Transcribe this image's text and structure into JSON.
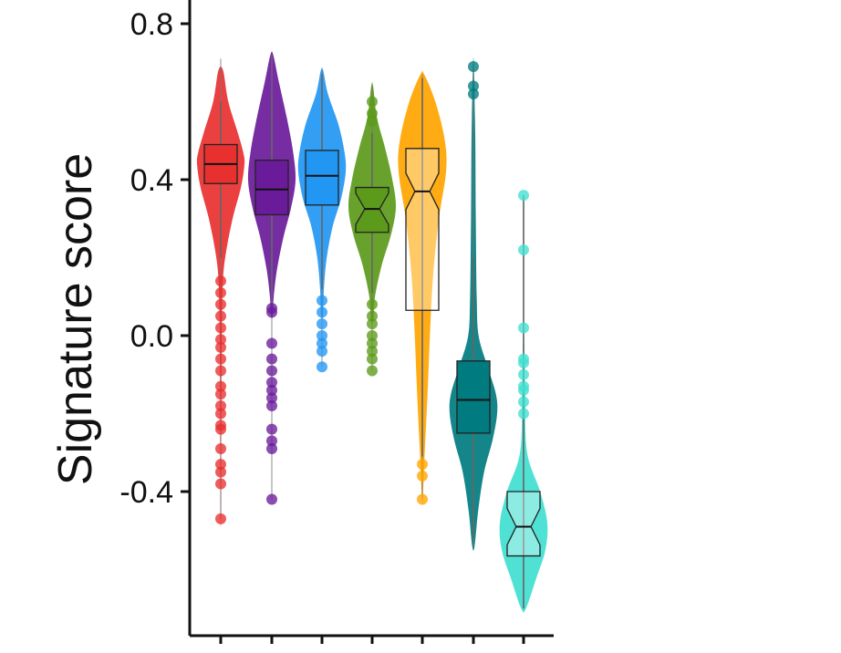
{
  "chart_data": {
    "type": "violin",
    "ylabel": "Signature score",
    "ylim": [
      -0.72,
      0.86
    ],
    "yticks": [
      0.8,
      0.4,
      0.0,
      -0.4
    ],
    "ytick_labels": [
      "0.8",
      "0.4",
      "0.0",
      "-0.4"
    ],
    "xtick_labels": [
      "",
      "",
      "",
      "",
      "",
      "",
      ""
    ],
    "grid": false,
    "legend": "none",
    "series": [
      {
        "color": "#e8302f",
        "q1": 0.39,
        "median": 0.44,
        "q3": 0.49,
        "whisker_low": 0.2,
        "whisker_high": 0.6,
        "min": -0.47,
        "max": 0.71,
        "notched": false,
        "transparent_box": false,
        "violin": [
          [
            0.68,
            0.1
          ],
          [
            0.6,
            0.32
          ],
          [
            0.52,
            0.72
          ],
          [
            0.47,
            0.95
          ],
          [
            0.44,
            1.0
          ],
          [
            0.38,
            0.85
          ],
          [
            0.3,
            0.5
          ],
          [
            0.22,
            0.24
          ],
          [
            0.15,
            0.1
          ],
          [
            0.05,
            0.05
          ],
          [
            -0.1,
            0.03
          ],
          [
            -0.3,
            0.02
          ],
          [
            -0.47,
            0.01
          ]
        ],
        "outliers": [
          0.14,
          0.11,
          0.08,
          0.05,
          0.02,
          -0.01,
          -0.03,
          -0.06,
          -0.09,
          -0.13,
          -0.15,
          -0.18,
          -0.2,
          -0.23,
          -0.24,
          -0.29,
          -0.33,
          -0.35,
          -0.38,
          -0.47
        ]
      },
      {
        "color": "#6a1b9a",
        "q1": 0.31,
        "median": 0.375,
        "q3": 0.45,
        "whisker_low": 0.12,
        "whisker_high": 0.62,
        "min": -0.42,
        "max": 0.72,
        "notched": false,
        "transparent_box": false,
        "violin": [
          [
            0.72,
            0.06
          ],
          [
            0.65,
            0.3
          ],
          [
            0.55,
            0.66
          ],
          [
            0.47,
            0.9
          ],
          [
            0.4,
            1.0
          ],
          [
            0.33,
            0.82
          ],
          [
            0.25,
            0.48
          ],
          [
            0.17,
            0.22
          ],
          [
            0.1,
            0.08
          ],
          [
            0.05,
            0.03
          ]
        ],
        "outliers": [
          0.07,
          0.06,
          -0.02,
          -0.06,
          -0.09,
          -0.12,
          -0.14,
          -0.16,
          -0.18,
          -0.24,
          -0.27,
          -0.29,
          -0.42
        ]
      },
      {
        "color": "#2196f3",
        "q1": 0.335,
        "median": 0.41,
        "q3": 0.475,
        "whisker_low": 0.12,
        "whisker_high": 0.67,
        "min": -0.08,
        "max": 0.68,
        "notched": false,
        "transparent_box": false,
        "violin": [
          [
            0.68,
            0.05
          ],
          [
            0.62,
            0.25
          ],
          [
            0.54,
            0.7
          ],
          [
            0.47,
            0.95
          ],
          [
            0.42,
            1.0
          ],
          [
            0.35,
            0.8
          ],
          [
            0.28,
            0.45
          ],
          [
            0.2,
            0.2
          ],
          [
            0.12,
            0.08
          ],
          [
            0.05,
            0.04
          ]
        ],
        "outliers": [
          0.09,
          0.06,
          0.03,
          0.0,
          -0.02,
          -0.04,
          -0.08
        ]
      },
      {
        "color": "#5b9a1a",
        "q1": 0.265,
        "median": 0.325,
        "q3": 0.38,
        "whisker_low": 0.11,
        "whisker_high": 0.52,
        "min": -0.09,
        "max": 0.64,
        "notched": true,
        "transparent_box": false,
        "violin": [
          [
            0.64,
            0.04
          ],
          [
            0.56,
            0.2
          ],
          [
            0.48,
            0.55
          ],
          [
            0.4,
            0.85
          ],
          [
            0.33,
            1.0
          ],
          [
            0.26,
            0.8
          ],
          [
            0.18,
            0.4
          ],
          [
            0.1,
            0.12
          ],
          [
            0.04,
            0.05
          ]
        ],
        "outliers": [
          0.6,
          0.57,
          0.55,
          0.08,
          0.05,
          0.03,
          0.0,
          -0.02,
          -0.04,
          -0.06,
          -0.09
        ]
      },
      {
        "color": "#ffa500",
        "q1": 0.065,
        "median": 0.37,
        "q3": 0.48,
        "whisker_low": -0.31,
        "whisker_high": 0.66,
        "min": -0.42,
        "max": 0.67,
        "notched": true,
        "transparent_box": true,
        "violin": [
          [
            0.67,
            0.08
          ],
          [
            0.6,
            0.55
          ],
          [
            0.5,
            0.95
          ],
          [
            0.42,
            1.0
          ],
          [
            0.3,
            0.7
          ],
          [
            0.15,
            0.45
          ],
          [
            0.0,
            0.32
          ],
          [
            -0.15,
            0.22
          ],
          [
            -0.3,
            0.1
          ],
          [
            -0.42,
            0.02
          ]
        ],
        "outliers": [
          -0.33,
          -0.36,
          -0.42
        ]
      },
      {
        "color": "#007b7f",
        "q1": -0.25,
        "median": -0.165,
        "q3": -0.065,
        "whisker_low": -0.52,
        "whisker_high": 0.2,
        "min": -0.54,
        "max": 0.69,
        "notched": false,
        "transparent_box": false,
        "violin": [
          [
            0.69,
            0.02
          ],
          [
            0.5,
            0.08
          ],
          [
            0.3,
            0.1
          ],
          [
            0.1,
            0.14
          ],
          [
            0.0,
            0.22
          ],
          [
            -0.08,
            0.6
          ],
          [
            -0.15,
            0.95
          ],
          [
            -0.2,
            1.0
          ],
          [
            -0.27,
            0.8
          ],
          [
            -0.35,
            0.45
          ],
          [
            -0.45,
            0.2
          ],
          [
            -0.54,
            0.05
          ]
        ],
        "outliers": [
          0.69,
          0.64,
          0.62
        ]
      },
      {
        "color": "#40e0d0",
        "q1": -0.565,
        "median": -0.49,
        "q3": -0.4,
        "whisker_low": -0.7,
        "whisker_high": 0.36,
        "min": -0.7,
        "max": 0.36,
        "notched": true,
        "transparent_box": true,
        "violin": [
          [
            0.0,
            0.02
          ],
          [
            -0.15,
            0.06
          ],
          [
            -0.3,
            0.15
          ],
          [
            -0.4,
            0.7
          ],
          [
            -0.48,
            1.0
          ],
          [
            -0.55,
            0.92
          ],
          [
            -0.62,
            0.55
          ],
          [
            -0.7,
            0.1
          ]
        ],
        "outliers": [
          0.36,
          0.22,
          0.02,
          -0.06,
          -0.07,
          -0.1,
          -0.13,
          -0.14,
          -0.17,
          -0.2
        ]
      }
    ]
  }
}
